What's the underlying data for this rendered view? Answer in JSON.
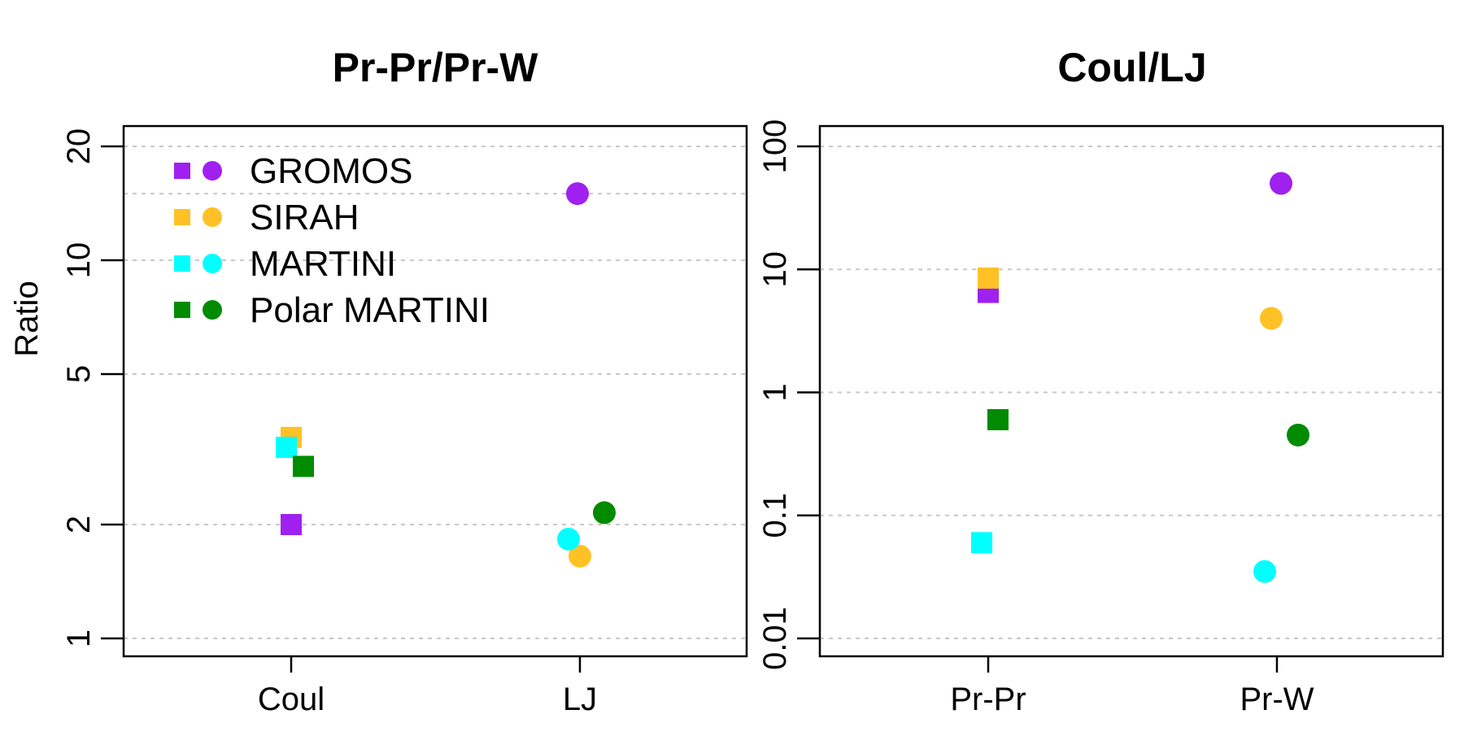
{
  "chart_data": [
    {
      "type": "scatter",
      "title": "Pr-Pr/Pr-W",
      "ylabel": "Ratio",
      "xlabel": "",
      "y_scale": "log",
      "ylim": [
        1,
        20
      ],
      "y_ticks": [
        {
          "value": 1,
          "label": "1"
        },
        {
          "value": 2,
          "label": "2"
        },
        {
          "value": 5,
          "label": "5"
        },
        {
          "value": 10,
          "label": "10"
        },
        {
          "value": 20,
          "label": "20"
        }
      ],
      "y_grid_values": [
        1,
        2,
        5,
        10,
        15,
        20
      ],
      "grid": true,
      "categories": [
        "Coul",
        "LJ"
      ],
      "legend_position": "top-left",
      "series": [
        {
          "name": "GROMOS",
          "color": "#A020F0",
          "points": [
            {
              "category": "Coul",
              "marker": "square",
              "y": 2.0
            },
            {
              "category": "LJ",
              "marker": "circle",
              "y": 15.0
            }
          ]
        },
        {
          "name": "SIRAH",
          "color": "#FFC125",
          "points": [
            {
              "category": "Coul",
              "marker": "square",
              "y": 3.4
            },
            {
              "category": "LJ",
              "marker": "circle",
              "y": 1.65
            }
          ]
        },
        {
          "name": "MARTINI",
          "color": "#00FFFF",
          "points": [
            {
              "category": "Coul",
              "marker": "square",
              "y": 3.2
            },
            {
              "category": "LJ",
              "marker": "circle",
              "y": 1.83
            }
          ]
        },
        {
          "name": "Polar MARTINI",
          "color": "#008B00",
          "points": [
            {
              "category": "Coul",
              "marker": "square",
              "y": 2.85
            },
            {
              "category": "LJ",
              "marker": "circle",
              "y": 2.15
            }
          ]
        }
      ]
    },
    {
      "type": "scatter",
      "title": "Coul/LJ",
      "ylabel": "",
      "xlabel": "",
      "y_scale": "log",
      "ylim": [
        0.01,
        100
      ],
      "y_ticks": [
        {
          "value": 0.01,
          "label": "0.01"
        },
        {
          "value": 0.1,
          "label": "0.1"
        },
        {
          "value": 1,
          "label": "1"
        },
        {
          "value": 10,
          "label": "10"
        },
        {
          "value": 100,
          "label": "100"
        }
      ],
      "y_grid_values": [
        0.01,
        0.1,
        1,
        10,
        100
      ],
      "grid": true,
      "categories": [
        "Pr-Pr",
        "Pr-W"
      ],
      "series": [
        {
          "name": "GROMOS",
          "color": "#A020F0",
          "points": [
            {
              "category": "Pr-Pr",
              "marker": "square",
              "y": 6.5
            },
            {
              "category": "Pr-W",
              "marker": "circle",
              "y": 50
            }
          ]
        },
        {
          "name": "SIRAH",
          "color": "#FFC125",
          "points": [
            {
              "category": "Pr-Pr",
              "marker": "square",
              "y": 8.5
            },
            {
              "category": "Pr-W",
              "marker": "circle",
              "y": 4.0
            }
          ]
        },
        {
          "name": "MARTINI",
          "color": "#00FFFF",
          "points": [
            {
              "category": "Pr-Pr",
              "marker": "square",
              "y": 0.06
            },
            {
              "category": "Pr-W",
              "marker": "circle",
              "y": 0.035
            }
          ]
        },
        {
          "name": "Polar MARTINI",
          "color": "#008B00",
          "points": [
            {
              "category": "Pr-Pr",
              "marker": "square",
              "y": 0.6
            },
            {
              "category": "Pr-W",
              "marker": "circle",
              "y": 0.45
            }
          ]
        }
      ]
    }
  ]
}
